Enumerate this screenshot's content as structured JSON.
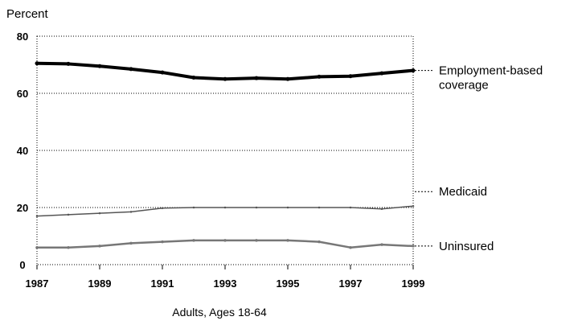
{
  "chart_data": {
    "type": "line",
    "title": "",
    "ylabel": "Percent",
    "xlabel": "Adults, Ages 18-64",
    "ylim": [
      0,
      80
    ],
    "yticks": [
      0,
      20,
      40,
      60,
      80
    ],
    "xticks": [
      "1987",
      "1989",
      "1991",
      "1993",
      "1995",
      "1997",
      "1999"
    ],
    "xlim": [
      1987,
      1999
    ],
    "grid": "horizontal dotted",
    "legend": "labels at right end of lines",
    "x": [
      1987,
      1988,
      1989,
      1990,
      1991,
      1992,
      1993,
      1994,
      1995,
      1996,
      1997,
      1998,
      1999
    ],
    "series": [
      {
        "name": "Employment-based coverage",
        "label_lines": [
          "Employment-based",
          "coverage"
        ],
        "values": [
          70.5,
          70.3,
          69.5,
          68.5,
          67.3,
          65.5,
          65.0,
          65.3,
          65.0,
          65.8,
          66.0,
          67.0,
          68.0
        ],
        "color": "#000000"
      },
      {
        "name": "Medicaid",
        "label_lines": [
          "Medicaid"
        ],
        "values": [
          17.0,
          17.5,
          18.0,
          18.5,
          19.8,
          20.0,
          20.0,
          20.0,
          20.0,
          20.0,
          20.0,
          19.5,
          20.5
        ],
        "color": "#555555"
      },
      {
        "name": "Uninsured",
        "label_lines": [
          "Uninsured"
        ],
        "values": [
          6.0,
          6.0,
          6.5,
          7.5,
          8.0,
          8.5,
          8.5,
          8.5,
          8.5,
          8.0,
          6.0,
          7.0,
          6.5
        ],
        "color": "#777777"
      }
    ]
  }
}
